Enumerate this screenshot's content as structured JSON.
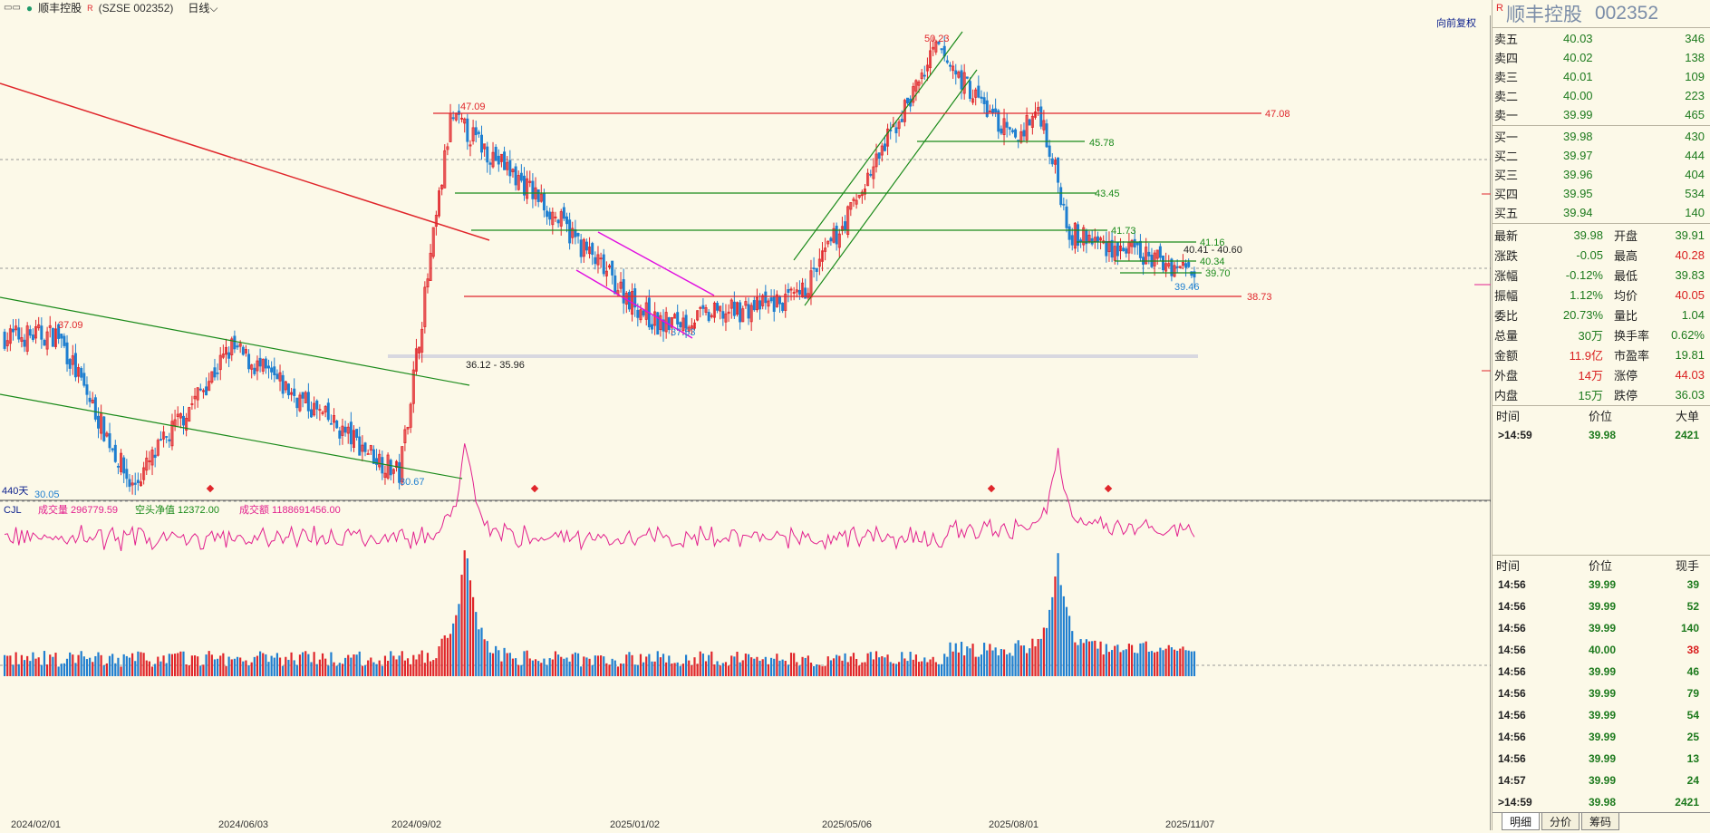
{
  "header": {
    "title": "顺丰控股",
    "code": "(SZSE 002352)",
    "period": "日线",
    "fq_label": "向前复权"
  },
  "chart_labels": {
    "price_marks": [
      "37.09",
      "30.05",
      "30.67",
      "47.09",
      "36.12 - 35.96",
      "37.53",
      "50.23",
      "45.78",
      "43.45",
      "41.73",
      "41.16",
      "40.41 - 40.60",
      "40.34",
      "39.70",
      "39.46",
      "47.08",
      "38.73"
    ],
    "days": "440天",
    "indicator_name": "CJL",
    "ind1": "成交量 296779.59",
    "ind2": "空头净值 12372.00",
    "ind3": "成交额 1188691456.00",
    "x_dates": [
      "2024/02/01",
      "2024/06/03",
      "2024/09/02",
      "2025/01/02",
      "2025/05/06",
      "2025/08/01",
      "2025/11/07"
    ]
  },
  "colors": {
    "up": "#e0262b",
    "down": "#1f7fd0",
    "bg": "#fcf9e8",
    "green_line": "#1a8a1a",
    "magenta": "#e010e0"
  },
  "quote": {
    "name": "顺丰控股",
    "code": "002352",
    "r_mark": "R",
    "asks": [
      {
        "label": "卖五",
        "price": "40.03",
        "vol": "346"
      },
      {
        "label": "卖四",
        "price": "40.02",
        "vol": "138"
      },
      {
        "label": "卖三",
        "price": "40.01",
        "vol": "109"
      },
      {
        "label": "卖二",
        "price": "40.00",
        "vol": "223"
      },
      {
        "label": "卖一",
        "price": "39.99",
        "vol": "465"
      }
    ],
    "bids": [
      {
        "label": "买一",
        "price": "39.98",
        "vol": "430"
      },
      {
        "label": "买二",
        "price": "39.97",
        "vol": "444"
      },
      {
        "label": "买三",
        "price": "39.96",
        "vol": "404"
      },
      {
        "label": "买四",
        "price": "39.95",
        "vol": "534"
      },
      {
        "label": "买五",
        "price": "39.94",
        "vol": "140"
      }
    ],
    "stats": [
      {
        "l1": "最新",
        "v1": "39.98",
        "c1": "green",
        "l2": "开盘",
        "v2": "39.91",
        "c2": "green"
      },
      {
        "l1": "涨跌",
        "v1": "-0.05",
        "c1": "green",
        "l2": "最高",
        "v2": "40.28",
        "c2": "red"
      },
      {
        "l1": "涨幅",
        "v1": "-0.12%",
        "c1": "green",
        "l2": "最低",
        "v2": "39.83",
        "c2": "green"
      },
      {
        "l1": "振幅",
        "v1": "1.12%",
        "c1": "green",
        "l2": "均价",
        "v2": "40.05",
        "c2": "red"
      },
      {
        "l1": "委比",
        "v1": "20.73%",
        "c1": "green",
        "l2": "量比",
        "v2": "1.04",
        "c2": "green"
      },
      {
        "l1": "总量",
        "v1": "30万",
        "c1": "green",
        "l2": "换手率",
        "v2": "0.62%",
        "c2": "green"
      },
      {
        "l1": "金额",
        "v1": "11.9亿",
        "c1": "red",
        "l2": "市盈率",
        "v2": "19.81",
        "c2": "green"
      },
      {
        "l1": "外盘",
        "v1": "14万",
        "c1": "red",
        "l2": "涨停",
        "v2": "44.03",
        "c2": "red"
      },
      {
        "l1": "内盘",
        "v1": "15万",
        "c1": "green",
        "l2": "跌停",
        "v2": "36.03",
        "c2": "green"
      }
    ],
    "big_header": [
      "时间",
      "价位",
      "大单"
    ],
    "big_rows": [
      {
        "time": ">14:59",
        "price": "39.98",
        "vol": "2421"
      }
    ],
    "tick_header": [
      "时间",
      "价位",
      "现手"
    ],
    "ticks": [
      {
        "time": "14:56",
        "price": "39.99",
        "vol": "39",
        "c": "green"
      },
      {
        "time": "14:56",
        "price": "39.99",
        "vol": "52",
        "c": "green"
      },
      {
        "time": "14:56",
        "price": "39.99",
        "vol": "140",
        "c": "green"
      },
      {
        "time": "14:56",
        "price": "40.00",
        "vol": "38",
        "c": "red"
      },
      {
        "time": "14:56",
        "price": "39.99",
        "vol": "46",
        "c": "green"
      },
      {
        "time": "14:56",
        "price": "39.99",
        "vol": "79",
        "c": "green"
      },
      {
        "time": "14:56",
        "price": "39.99",
        "vol": "54",
        "c": "green"
      },
      {
        "time": "14:56",
        "price": "39.99",
        "vol": "25",
        "c": "green"
      },
      {
        "time": "14:56",
        "price": "39.99",
        "vol": "13",
        "c": "green"
      },
      {
        "time": "14:57",
        "price": "39.99",
        "vol": "24",
        "c": "green"
      },
      {
        "time": ">14:59",
        "price": "39.98",
        "vol": "2421",
        "c": "green"
      }
    ],
    "tabs": [
      "明细",
      "分价",
      "筹码"
    ]
  },
  "chart_data": {
    "type": "candlestick",
    "x_range": [
      "2024/02/01",
      "2025/11/07"
    ],
    "y_range": [
      30.05,
      50.23
    ],
    "key_points": [
      {
        "date": "2024/02/01",
        "close": 37.0
      },
      {
        "date": "2024/03/01",
        "close": 37.09
      },
      {
        "date": "2024/04/10",
        "close": 30.05
      },
      {
        "date": "2024/06/03",
        "close": 36.5
      },
      {
        "date": "2024/09/02",
        "close": 30.67
      },
      {
        "date": "2024/09/30",
        "close": 47.09
      },
      {
        "date": "2024/11/15",
        "close": 43.5
      },
      {
        "date": "2025/01/02",
        "close": 39.0
      },
      {
        "date": "2025/01/20",
        "close": 37.53
      },
      {
        "date": "2025/04/07",
        "close": 38.73
      },
      {
        "date": "2025/05/06",
        "close": 43.0
      },
      {
        "date": "2025/06/20",
        "close": 50.23
      },
      {
        "date": "2025/08/01",
        "close": 46.0
      },
      {
        "date": "2025/08/15",
        "close": 47.5
      },
      {
        "date": "2025/09/01",
        "close": 41.73
      },
      {
        "date": "2025/11/07",
        "close": 39.98
      }
    ],
    "volume_peaks": [
      {
        "date": "2024/10/08",
        "vol": "max"
      },
      {
        "date": "2025/08/25",
        "vol": "max"
      }
    ]
  }
}
